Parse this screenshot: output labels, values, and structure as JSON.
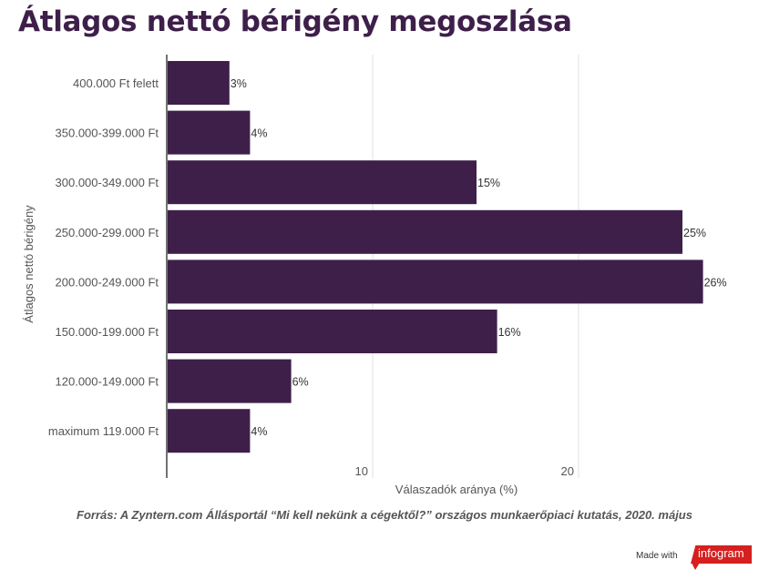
{
  "chart_data": {
    "type": "bar",
    "orientation": "horizontal",
    "title": "Átlagos nettó bérigény megoszlása",
    "categories": [
      "400.000 Ft felett",
      "350.000-399.000 Ft",
      "300.000-349.000 Ft",
      "250.000-299.000 Ft",
      "200.000-249.000 Ft",
      "150.000-199.000 Ft",
      "120.000-149.000 Ft",
      "maximum 119.000 Ft"
    ],
    "values": [
      3,
      4,
      15,
      25,
      26,
      16,
      6,
      4
    ],
    "data_labels": [
      "3%",
      "4%",
      "15%",
      "25%",
      "26%",
      "16%",
      "6%",
      "4%"
    ],
    "xlabel": "Válaszadók aránya (%)",
    "ylabel": "Átlagos nettó bérigény",
    "xlim": [
      0,
      28
    ],
    "xticks": [
      10,
      20
    ],
    "grid": true,
    "bar_color": "#3e1f4a"
  },
  "footer": {
    "source": "Forrás: A Zyntern.com Állásportál “Mi kell nekünk a cégektől?” országos munkaerőpiaci kutatás, 2020. május",
    "made_with": "Made with",
    "brand": "infogram"
  }
}
